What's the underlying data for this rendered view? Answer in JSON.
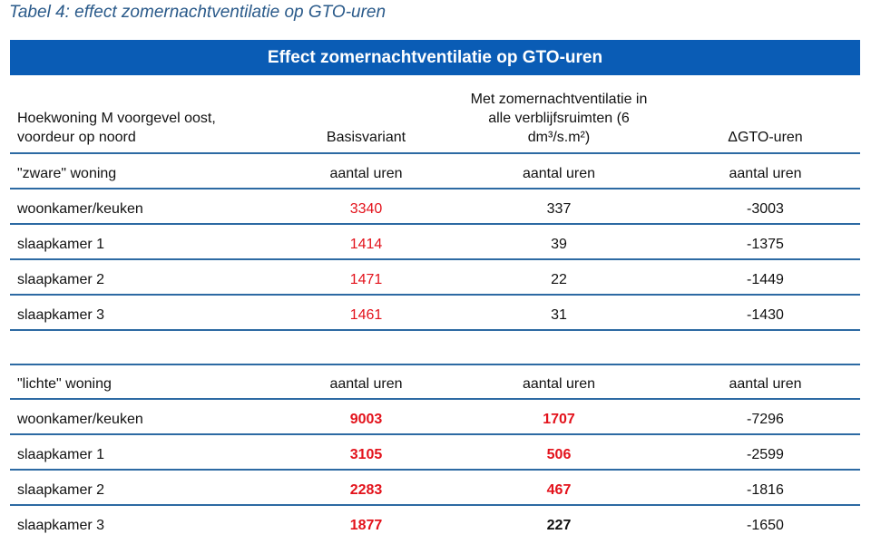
{
  "caption": "Tabel 4: effect zomernachtventilatie op GTO-uren",
  "banner": "Effect zomernachtventilatie op GTO-uren",
  "headers": {
    "col1_line1": "Hoekwoning M voorgevel oost,",
    "col1_line2": "voordeur op noord",
    "col2": "Basisvariant",
    "col3_line1": "Met zomernachtventilatie in",
    "col3_line2": "alle verblijfsruimten (6",
    "col3_line3": "dm³/s.m²)",
    "col4": "ΔGTO-uren"
  },
  "colors": {
    "accent": "#0a5cb5",
    "highlight": "#e3121b",
    "rule": "#2d6aa3"
  },
  "sections": [
    {
      "title": "\"zware\" woning",
      "units": [
        "aantal uren",
        "aantal uren",
        "aantal uren"
      ],
      "rows": [
        {
          "room": "woonkamer/keuken",
          "basis": "3340",
          "met": "337",
          "delta": "-3003"
        },
        {
          "room": "slaapkamer 1",
          "basis": "1414",
          "met": "39",
          "delta": "-1375"
        },
        {
          "room": "slaapkamer 2",
          "basis": "1471",
          "met": "22",
          "delta": "-1449"
        },
        {
          "room": "slaapkamer 3",
          "basis": "1461",
          "met": "31",
          "delta": "-1430"
        }
      ]
    },
    {
      "title": "\"lichte\" woning",
      "units": [
        "aantal uren",
        "aantal uren",
        "aantal uren"
      ],
      "rows": [
        {
          "room": "woonkamer/keuken",
          "basis": "9003",
          "met": "1707",
          "delta": "-7296"
        },
        {
          "room": "slaapkamer 1",
          "basis": "3105",
          "met": "506",
          "delta": "-2599"
        },
        {
          "room": "slaapkamer 2",
          "basis": "2283",
          "met": "467",
          "delta": "-1816"
        },
        {
          "room": "slaapkamer 3",
          "basis": "1877",
          "met": "227",
          "delta": "-1650"
        }
      ]
    }
  ]
}
